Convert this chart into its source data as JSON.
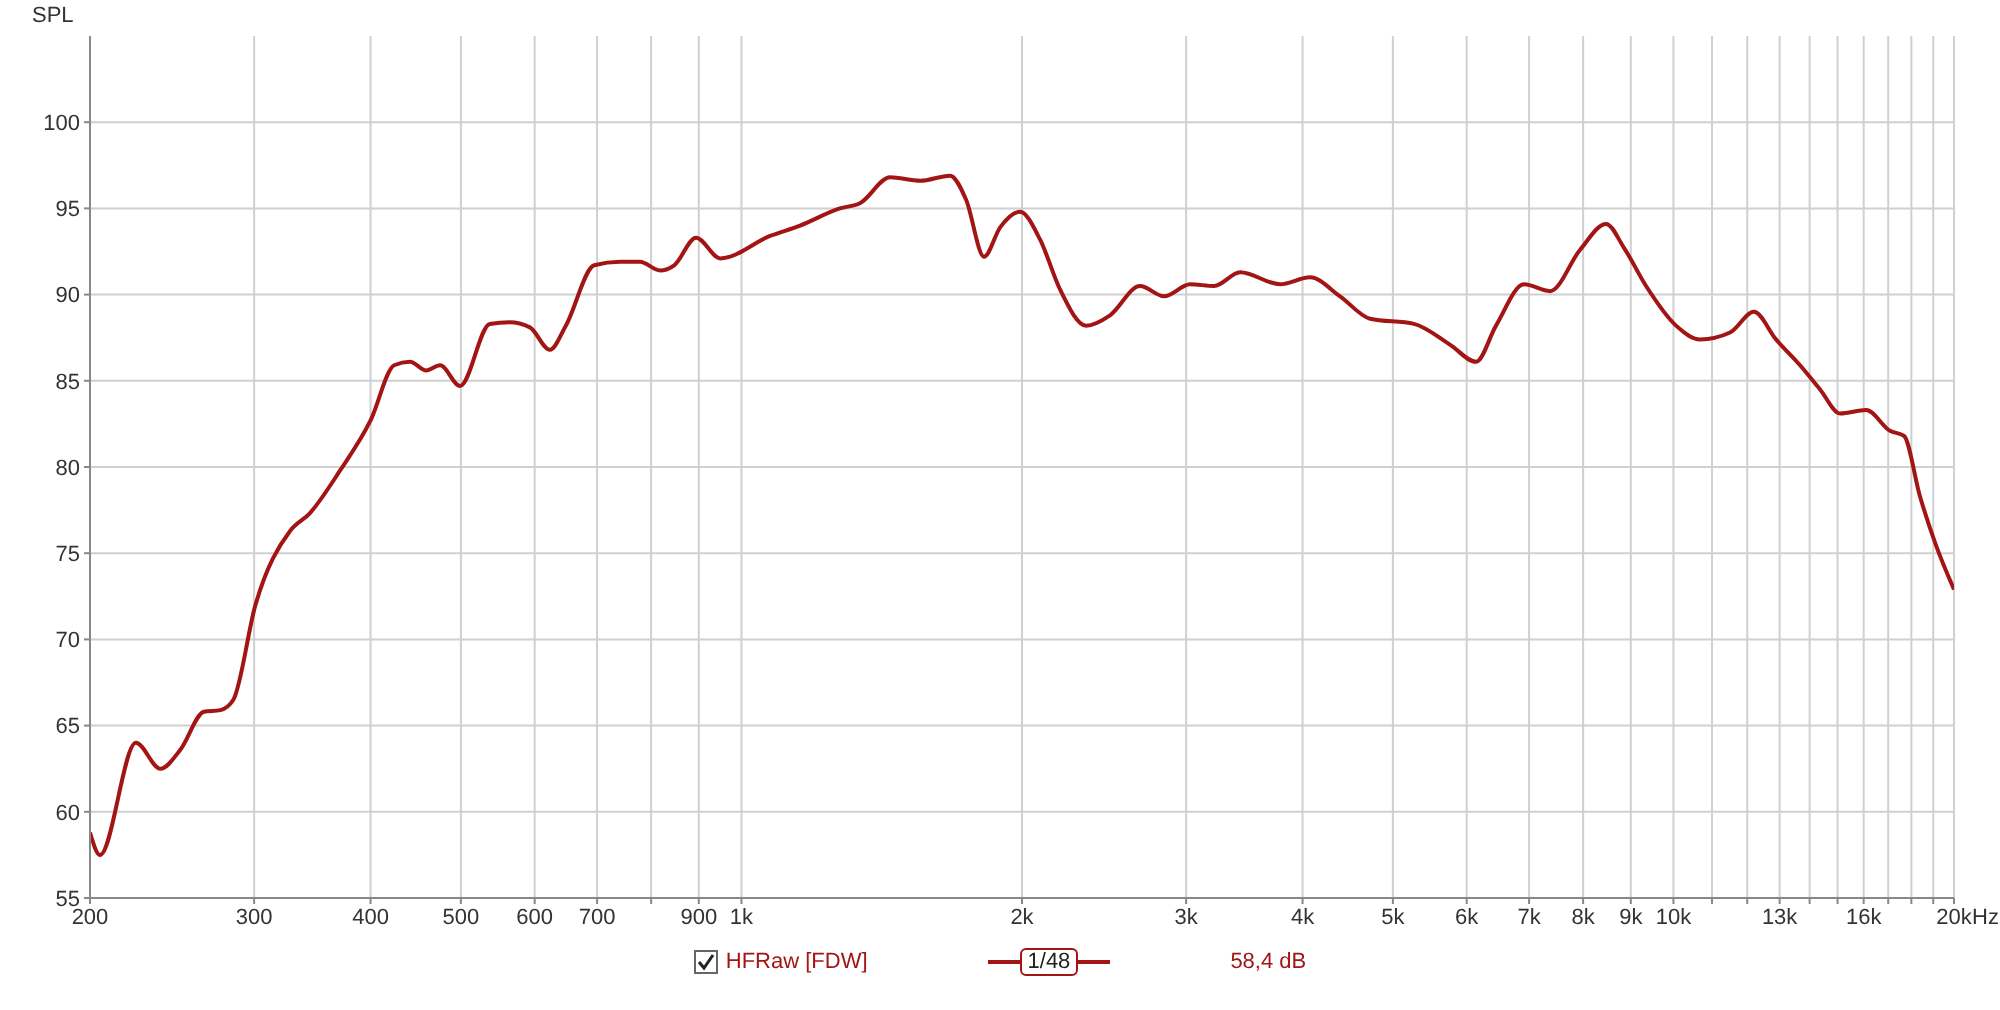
{
  "chart_data": {
    "type": "line",
    "ylabel": "SPL",
    "log": "x",
    "grid": true,
    "legend": "bottom",
    "marker": "none",
    "line_style": "solid",
    "x": [
      200,
      205,
      224,
      238,
      250,
      265,
      276,
      285,
      301,
      328,
      344,
      371,
      400,
      424,
      441,
      459,
      475,
      499,
      537,
      564,
      593,
      623,
      648,
      695,
      741,
      778,
      818,
      847,
      894,
      949,
      1073,
      1156,
      1275,
      1340,
      1444,
      1555,
      1674,
      1742,
      1821,
      1895,
      1990,
      2091,
      2197,
      2343,
      2486,
      2677,
      2841,
      3030,
      3215,
      3429,
      3783,
      4074,
      4388,
      4726,
      5267,
      5757,
      6141,
      6451,
      6914,
      7373,
      7941,
      8467,
      8853,
      9346,
      10065,
      10679,
      11502,
      12199,
      12884,
      13672,
      14365,
      15096,
      16100,
      17072,
      17676,
      18386,
      19118,
      20000
    ],
    "series": [
      {
        "name": "HFRaw [FDW]",
        "color": "#a31515",
        "values": [
          58.8,
          57.5,
          64.0,
          62.5,
          63.6,
          65.8,
          65.9,
          66.5,
          72.0,
          76.3,
          77.3,
          79.8,
          82.7,
          85.9,
          86.1,
          85.6,
          85.9,
          84.7,
          88.3,
          88.4,
          88.1,
          86.8,
          88.2,
          91.7,
          91.9,
          91.9,
          91.4,
          91.7,
          93.3,
          92.1,
          93.4,
          94.0,
          95.0,
          95.3,
          96.8,
          96.6,
          96.9,
          95.5,
          92.2,
          93.9,
          94.8,
          93.2,
          90.3,
          88.2,
          88.8,
          90.5,
          89.9,
          90.6,
          90.5,
          91.3,
          90.6,
          91.0,
          89.9,
          88.6,
          88.3,
          87.1,
          86.1,
          88.2,
          90.6,
          90.2,
          92.6,
          94.1,
          92.7,
          90.5,
          88.2,
          87.4,
          87.8,
          89.0,
          87.4,
          85.9,
          84.5,
          83.1,
          83.3,
          82.1,
          81.8,
          78.3,
          75.5,
          72.9
        ]
      }
    ],
    "xlim": [
      200,
      20000
    ],
    "xticks": [
      {
        "value": 200,
        "label": "200"
      },
      {
        "value": 300,
        "label": "300"
      },
      {
        "value": 400,
        "label": "400"
      },
      {
        "value": 500,
        "label": "500"
      },
      {
        "value": 600,
        "label": "600"
      },
      {
        "value": 700,
        "label": "700"
      },
      {
        "value": 800,
        "label": null
      },
      {
        "value": 900,
        "label": "900"
      },
      {
        "value": 1000,
        "label": "1k"
      },
      {
        "value": 2000,
        "label": "2k"
      },
      {
        "value": 3000,
        "label": "3k"
      },
      {
        "value": 4000,
        "label": "4k"
      },
      {
        "value": 5000,
        "label": "5k"
      },
      {
        "value": 6000,
        "label": "6k"
      },
      {
        "value": 7000,
        "label": "7k"
      },
      {
        "value": 8000,
        "label": "8k"
      },
      {
        "value": 9000,
        "label": "9k"
      },
      {
        "value": 10000,
        "label": "10k"
      },
      {
        "value": 11000,
        "label": null
      },
      {
        "value": 12000,
        "label": null
      },
      {
        "value": 13000,
        "label": "13k"
      },
      {
        "value": 14000,
        "label": null
      },
      {
        "value": 15000,
        "label": null
      },
      {
        "value": 16000,
        "label": "16k"
      },
      {
        "value": 17000,
        "label": null
      },
      {
        "value": 18000,
        "label": null
      },
      {
        "value": 19000,
        "label": null
      },
      {
        "value": 20000,
        "label": "20k"
      }
    ],
    "xlabel": "Hz",
    "ylim": [
      55,
      105
    ],
    "yticks": [
      55,
      60,
      65,
      70,
      75,
      80,
      85,
      90,
      95,
      100
    ],
    "annotations": [
      "1/48",
      "58,4 dB"
    ]
  }
}
